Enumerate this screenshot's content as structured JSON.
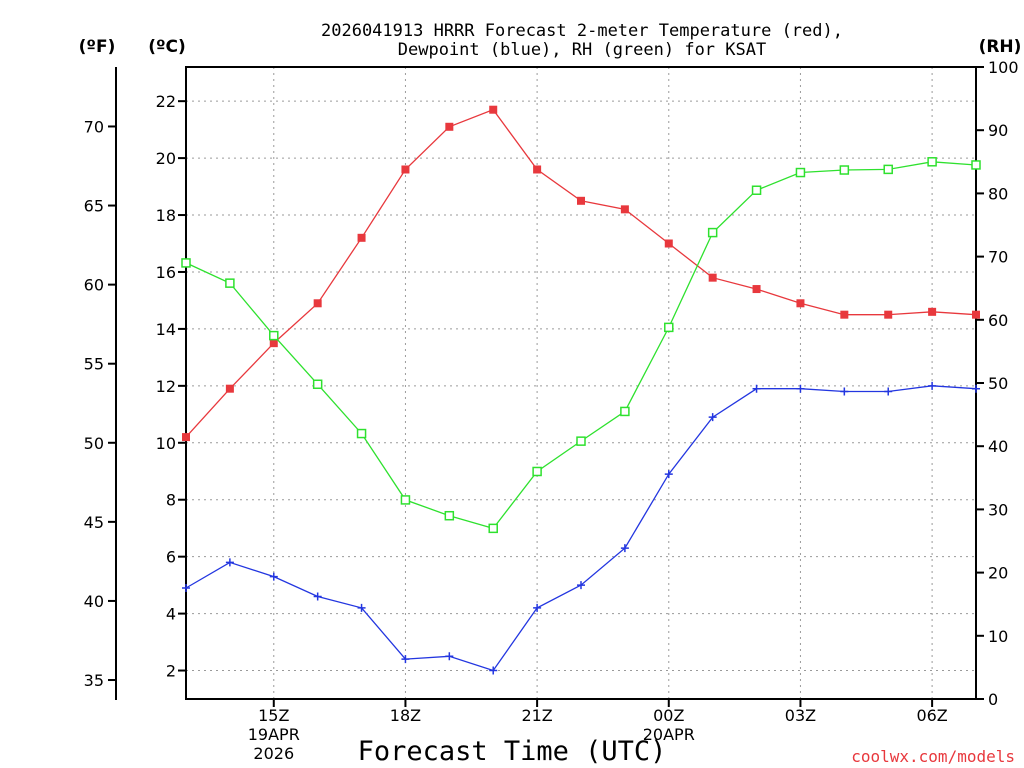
{
  "chart_data": {
    "type": "line",
    "title_line1": "2026041913 HRRR Forecast 2-meter Temperature (red),",
    "title_line2": "Dewpoint (blue), RH (green) for KSAT",
    "xlabel": "Forecast Time (UTC)",
    "credit": "coolwx.com/models",
    "left_unit_f": "(ºF)",
    "left_unit_c": "(ºC)",
    "right_unit": "(RH)",
    "x_hours": [
      13,
      14,
      15,
      16,
      17,
      18,
      19,
      20,
      21,
      22,
      23,
      24,
      25,
      26,
      27,
      28,
      29,
      30,
      31
    ],
    "x_range": [
      13,
      31
    ],
    "x_ticks": [
      {
        "hour": 15,
        "label": "15Z",
        "sub1": "19APR",
        "sub2": "2026"
      },
      {
        "hour": 18,
        "label": "18Z",
        "sub1": "",
        "sub2": ""
      },
      {
        "hour": 21,
        "label": "21Z",
        "sub1": "",
        "sub2": ""
      },
      {
        "hour": 24,
        "label": "00Z",
        "sub1": "20APR",
        "sub2": ""
      },
      {
        "hour": 27,
        "label": "03Z",
        "sub1": "",
        "sub2": ""
      },
      {
        "hour": 30,
        "label": "06Z",
        "sub1": "",
        "sub2": ""
      }
    ],
    "c_range": [
      1.0,
      23.2
    ],
    "c_ticks": [
      "2",
      "4",
      "6",
      "8",
      "10",
      "12",
      "14",
      "16",
      "18",
      "20",
      "22"
    ],
    "f_ticks": [
      "35",
      "40",
      "45",
      "50",
      "55",
      "60",
      "65",
      "70"
    ],
    "rh_range": [
      0,
      100
    ],
    "rh_ticks": [
      "0",
      "10",
      "20",
      "30",
      "40",
      "50",
      "60",
      "70",
      "80",
      "90",
      "100"
    ],
    "series": [
      {
        "name": "Temperature",
        "unit": "C",
        "color": "#e8383d",
        "marker": "filled-square",
        "values": [
          10.2,
          11.9,
          13.5,
          14.9,
          17.2,
          19.6,
          21.1,
          21.7,
          19.6,
          18.5,
          18.2,
          17.0,
          15.8,
          15.4,
          14.9,
          14.5,
          14.5,
          14.6,
          14.5
        ]
      },
      {
        "name": "Dewpoint",
        "unit": "C",
        "color": "#2336e0",
        "marker": "plus",
        "values": [
          4.9,
          5.8,
          5.3,
          4.6,
          4.2,
          2.4,
          2.5,
          2.0,
          4.2,
          5.0,
          6.3,
          8.9,
          10.9,
          11.9,
          11.9,
          11.8,
          11.8,
          12.0,
          11.9
        ]
      },
      {
        "name": "RH",
        "unit": "%",
        "color": "#2ee12e",
        "marker": "open-square",
        "values": [
          69,
          65.8,
          57.5,
          49.8,
          42,
          31.5,
          29,
          27,
          36,
          40.8,
          45.5,
          58.8,
          73.8,
          80.5,
          83.3,
          83.7,
          83.8,
          85,
          84.5
        ]
      }
    ]
  }
}
